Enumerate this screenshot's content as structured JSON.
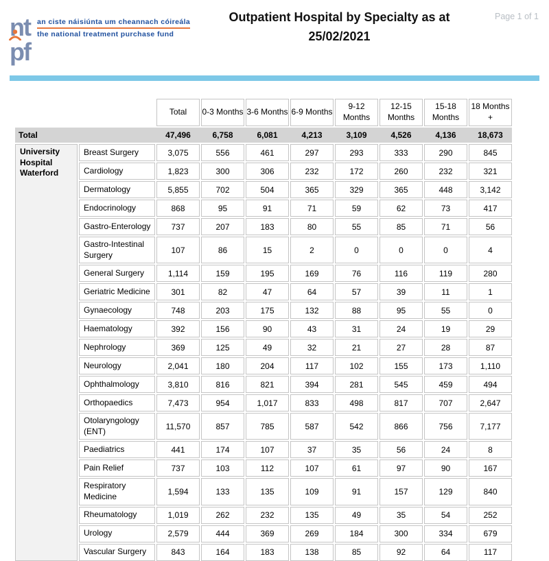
{
  "header": {
    "logo": {
      "brand": "ntpf",
      "tagline_irish": "an ciste náisiúnta um cheannach cóireála",
      "tagline_english": "the national treatment purchase fund"
    },
    "title": "Outpatient Hospital by Specialty as at 25/02/2021",
    "page_label": "Page 1 of 1"
  },
  "colors": {
    "accent_bar": "#7dc8e7",
    "total_row_bg": "#d4d4d4",
    "hospital_cell_bg": "#f2f2f2",
    "cell_border": "#c4c4c4",
    "logo_blue": "#7b8db0",
    "logo_orange": "#e8763a",
    "tagline_blue": "#1e4f9e",
    "page_label_gray": "#b8bec4"
  },
  "table": {
    "column_headers": [
      "Total",
      "0-3 Months",
      "3-6 Months",
      "6-9 Months",
      "9-12 Months",
      "12-15 Months",
      "15-18 Months",
      "18 Months +"
    ],
    "total_row": {
      "label": "Total",
      "values": [
        "47,496",
        "6,758",
        "6,081",
        "4,213",
        "3,109",
        "4,526",
        "4,136",
        "18,673"
      ]
    },
    "hospital": "University Hospital Waterford",
    "rows": [
      {
        "specialty": "Breast Surgery",
        "values": [
          "3,075",
          "556",
          "461",
          "297",
          "293",
          "333",
          "290",
          "845"
        ]
      },
      {
        "specialty": "Cardiology",
        "values": [
          "1,823",
          "300",
          "306",
          "232",
          "172",
          "260",
          "232",
          "321"
        ]
      },
      {
        "specialty": "Dermatology",
        "values": [
          "5,855",
          "702",
          "504",
          "365",
          "329",
          "365",
          "448",
          "3,142"
        ]
      },
      {
        "specialty": "Endocrinology",
        "values": [
          "868",
          "95",
          "91",
          "71",
          "59",
          "62",
          "73",
          "417"
        ]
      },
      {
        "specialty": "Gastro-Enterology",
        "values": [
          "737",
          "207",
          "183",
          "80",
          "55",
          "85",
          "71",
          "56"
        ]
      },
      {
        "specialty": "Gastro-Intestinal Surgery",
        "values": [
          "107",
          "86",
          "15",
          "2",
          "0",
          "0",
          "0",
          "4"
        ]
      },
      {
        "specialty": "General Surgery",
        "values": [
          "1,114",
          "159",
          "195",
          "169",
          "76",
          "116",
          "119",
          "280"
        ]
      },
      {
        "specialty": "Geriatric Medicine",
        "values": [
          "301",
          "82",
          "47",
          "64",
          "57",
          "39",
          "11",
          "1"
        ]
      },
      {
        "specialty": "Gynaecology",
        "values": [
          "748",
          "203",
          "175",
          "132",
          "88",
          "95",
          "55",
          "0"
        ]
      },
      {
        "specialty": "Haematology",
        "values": [
          "392",
          "156",
          "90",
          "43",
          "31",
          "24",
          "19",
          "29"
        ]
      },
      {
        "specialty": "Nephrology",
        "values": [
          "369",
          "125",
          "49",
          "32",
          "21",
          "27",
          "28",
          "87"
        ]
      },
      {
        "specialty": "Neurology",
        "values": [
          "2,041",
          "180",
          "204",
          "117",
          "102",
          "155",
          "173",
          "1,110"
        ]
      },
      {
        "specialty": "Ophthalmology",
        "values": [
          "3,810",
          "816",
          "821",
          "394",
          "281",
          "545",
          "459",
          "494"
        ]
      },
      {
        "specialty": "Orthopaedics",
        "values": [
          "7,473",
          "954",
          "1,017",
          "833",
          "498",
          "817",
          "707",
          "2,647"
        ]
      },
      {
        "specialty": "Otolaryngology (ENT)",
        "values": [
          "11,570",
          "857",
          "785",
          "587",
          "542",
          "866",
          "756",
          "7,177"
        ]
      },
      {
        "specialty": "Paediatrics",
        "values": [
          "441",
          "174",
          "107",
          "37",
          "35",
          "56",
          "24",
          "8"
        ]
      },
      {
        "specialty": "Pain Relief",
        "values": [
          "737",
          "103",
          "112",
          "107",
          "61",
          "97",
          "90",
          "167"
        ]
      },
      {
        "specialty": "Respiratory Medicine",
        "values": [
          "1,594",
          "133",
          "135",
          "109",
          "91",
          "157",
          "129",
          "840"
        ]
      },
      {
        "specialty": "Rheumatology",
        "values": [
          "1,019",
          "262",
          "232",
          "135",
          "49",
          "35",
          "54",
          "252"
        ]
      },
      {
        "specialty": "Urology",
        "values": [
          "2,579",
          "444",
          "369",
          "269",
          "184",
          "300",
          "334",
          "679"
        ]
      },
      {
        "specialty": "Vascular Surgery",
        "values": [
          "843",
          "164",
          "183",
          "138",
          "85",
          "92",
          "64",
          "117"
        ]
      }
    ]
  }
}
